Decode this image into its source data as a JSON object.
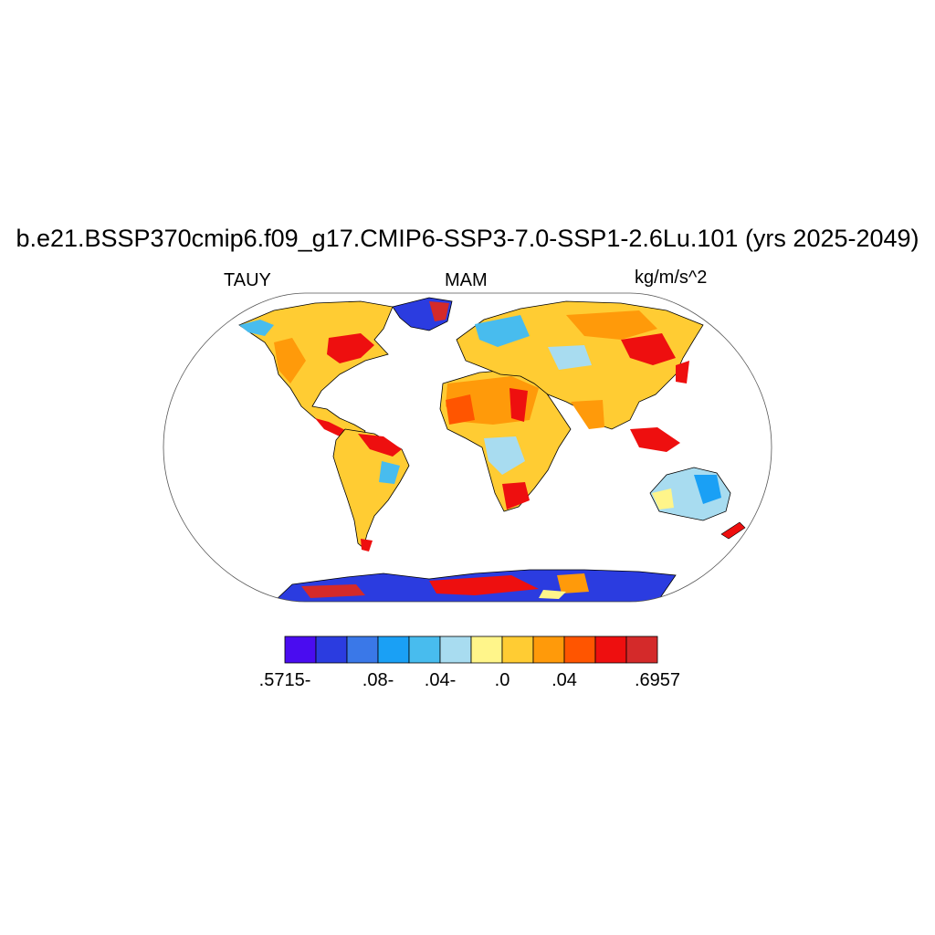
{
  "title": "b.e21.BSSP370cmip6.f09_g17.CMIP6-SSP3-7.0-SSP1-2.6Lu.101 (yrs 2025-2049)",
  "left_label": "TAUY",
  "center_label": "MAM",
  "right_label": "kg/m/s^2",
  "colorbar": {
    "colors": [
      "#4a0cf0",
      "#2b3ce0",
      "#3a78e8",
      "#1aa0f5",
      "#48bcee",
      "#a8dcf0",
      "#fff58a",
      "#ffcc33",
      "#ff9a0a",
      "#ff5500",
      "#ee0f0f",
      "#d42a2a"
    ],
    "labels": [
      {
        "text": ".5715-",
        "slot": 0
      },
      {
        "text": ".08-",
        "slot": 3
      },
      {
        "text": ".04-",
        "slot": 5
      },
      {
        "text": ".0",
        "slot": 7
      },
      {
        "text": ".04",
        "slot": 9
      },
      {
        "text": ".6957",
        "slot": 12
      }
    ]
  },
  "projection": "Robinson",
  "regions": [
    {
      "name": "north-america",
      "fill": "#ffcc33"
    },
    {
      "name": "south-america",
      "fill": "#ffcc33"
    },
    {
      "name": "africa",
      "fill": "#ffcc33"
    },
    {
      "name": "eurasia",
      "fill": "#ffcc33"
    },
    {
      "name": "australia",
      "fill": "#a8dcf0"
    },
    {
      "name": "greenland",
      "fill": "#2b3ce0"
    },
    {
      "name": "antarctica",
      "fill": "#2b3ce0"
    }
  ]
}
